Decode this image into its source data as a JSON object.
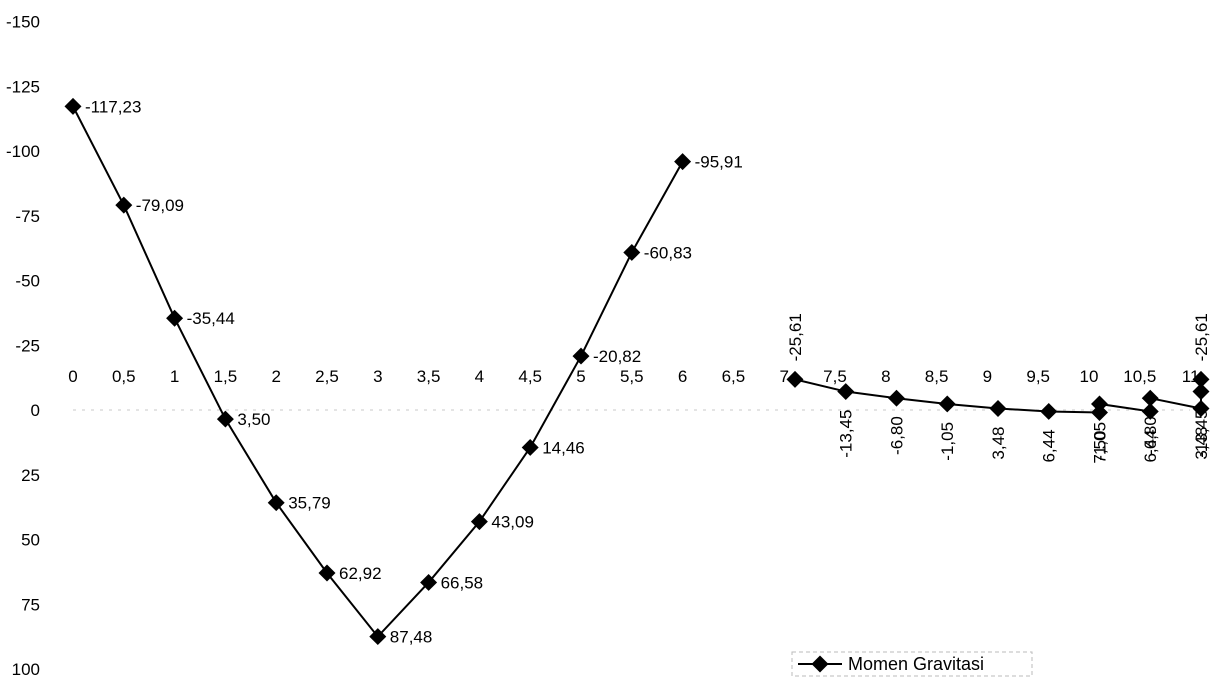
{
  "chart_data": {
    "type": "line",
    "title": "",
    "xlabel": "",
    "ylabel": "",
    "y_inverted": true,
    "ylim": [
      -150,
      100
    ],
    "y_ticks": [
      "-150",
      "-125",
      "-100",
      "-75",
      "-50",
      "-25",
      "0",
      "25",
      "50",
      "75",
      "100"
    ],
    "x_ticks": [
      "0",
      "0,5",
      "1",
      "1,5",
      "2",
      "2,5",
      "3",
      "3,5",
      "4",
      "4,5",
      "5",
      "5,5",
      "6",
      "6,5",
      "7",
      "7,5",
      "8",
      "8,5",
      "9",
      "9,5",
      "10",
      "10,5",
      "11"
    ],
    "legend": {
      "position": "bottom-right",
      "label": "Momen Gravitasi"
    },
    "grid": false,
    "series": [
      {
        "name": "Momen Gravitasi",
        "segments": [
          {
            "x": [
              0,
              0.5,
              1,
              1.5,
              2,
              2.5,
              3,
              3.5,
              4,
              4.5,
              5,
              5.5,
              6
            ],
            "y": [
              -117.23,
              -79.09,
              -35.44,
              3.5,
              35.79,
              62.92,
              87.48,
              66.58,
              43.09,
              14.46,
              -20.82,
              -60.83,
              -95.91
            ],
            "labels": [
              "-117,23",
              "-79,09",
              "-35,44",
              "3,50",
              "35,79",
              "62,92",
              "87,48",
              "66,58",
              "43,09",
              "14,46",
              "-20,82",
              "-60,83",
              "-95,91"
            ]
          },
          {
            "x": [
              7,
              7.5,
              8,
              8.5,
              9,
              9.5,
              10,
              10.5,
              11
            ],
            "y": [
              -25.61,
              -13.45,
              -6.8,
              -1.05,
              3.48,
              6.44,
              7.5,
              6.44,
              3.48
            ],
            "labels": [
              "-25,61",
              "-13,45",
              "-6,80",
              "-1,05",
              "3,48",
              "6,44",
              "7,50",
              "6,44",
              "3,48"
            ]
          },
          {
            "x": [
              10,
              10.5,
              11
            ],
            "y": [
              -1.05,
              -6.8,
              -13.45
            ],
            "labels": [
              "-1,05",
              "-6,80",
              "-13,45"
            ]
          },
          {
            "x": [
              11
            ],
            "y": [
              -25.61
            ],
            "labels": [
              "-25,61"
            ]
          }
        ]
      }
    ]
  }
}
